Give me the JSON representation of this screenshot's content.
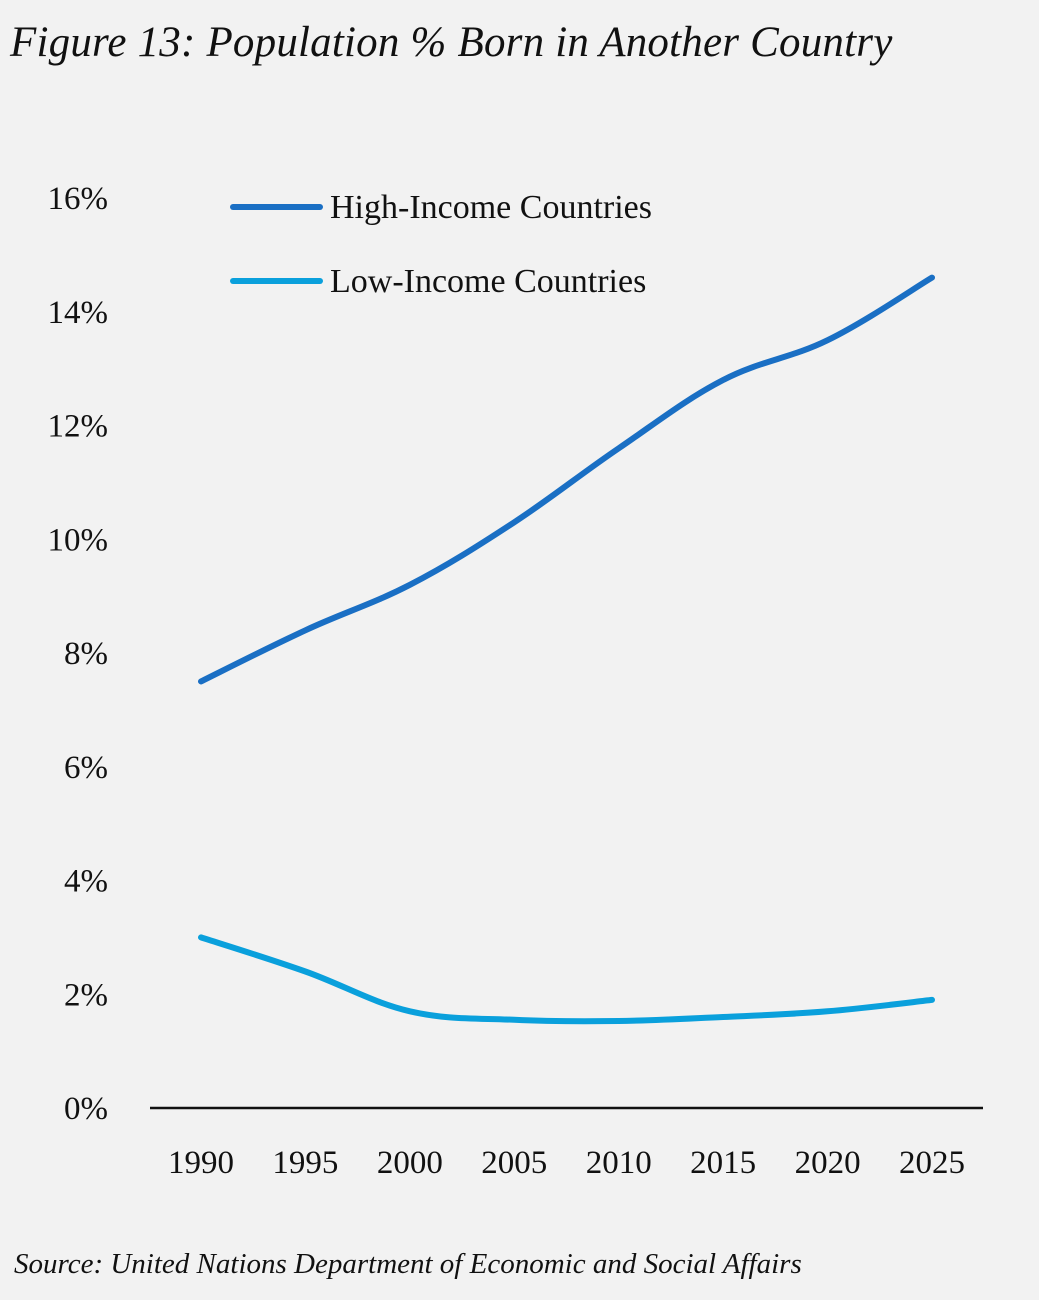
{
  "title": "Figure 13: Population % Born in Another Country",
  "source": "Source: United Nations Department of Economic and Social Affairs",
  "colors": {
    "background": "#f2f2f2",
    "high_income": "#1a6fc4",
    "low_income": "#0aa0dc",
    "axis": "#111111"
  },
  "chart_data": {
    "type": "line",
    "title": "Figure 13: Population % Born in Another Country",
    "xlabel": "",
    "ylabel": "",
    "x": [
      1990,
      1995,
      2000,
      2005,
      2010,
      2015,
      2020,
      2025
    ],
    "x_tick_labels": [
      "1990",
      "1995",
      "2000",
      "2005",
      "2010",
      "2015",
      "2020",
      "2025"
    ],
    "y_tick_labels": [
      "0%",
      "2%",
      "4%",
      "6%",
      "8%",
      "10%",
      "12%",
      "14%",
      "16%"
    ],
    "ylim": [
      0,
      16
    ],
    "grid": false,
    "legend_position": "top-left",
    "series": [
      {
        "name": "High-Income Countries",
        "color": "#1a6fc4",
        "values": [
          7.5,
          8.4,
          9.2,
          10.3,
          11.6,
          12.8,
          13.5,
          14.6
        ]
      },
      {
        "name": "Low-Income Countries",
        "color": "#0aa0dc",
        "values": [
          3.0,
          2.4,
          1.7,
          1.55,
          1.53,
          1.6,
          1.7,
          1.9
        ]
      }
    ]
  }
}
